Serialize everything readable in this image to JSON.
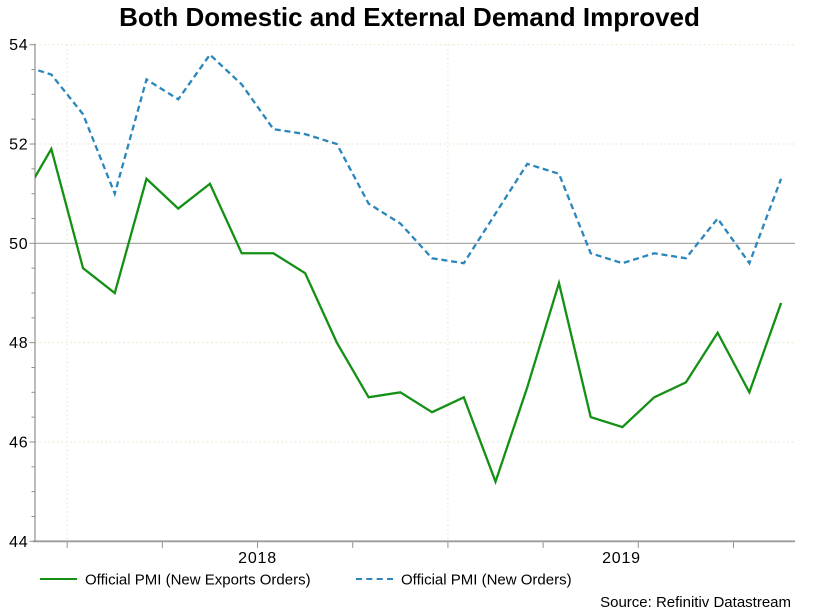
{
  "header": {
    "title": "Both Domestic and External Demand Improved"
  },
  "footer": {
    "source": "Source: Refinitiv Datastream"
  },
  "chart_data": {
    "type": "line",
    "title": "Both Domestic and External Demand Improved",
    "months": [
      "2017-11",
      "2017-12",
      "2018-01",
      "2018-02",
      "2018-03",
      "2018-04",
      "2018-05",
      "2018-06",
      "2018-07",
      "2018-08",
      "2018-09",
      "2018-10",
      "2018-11",
      "2018-12",
      "2019-01",
      "2019-02",
      "2019-03",
      "2019-04",
      "2019-05",
      "2019-06",
      "2019-07",
      "2019-08",
      "2019-09",
      "2019-10",
      "2019-11"
    ],
    "series": [
      {
        "name": "Official PMI (New Exports Orders)",
        "color": "#149014",
        "style": "solid",
        "values": [
          50.8,
          51.9,
          49.5,
          49.0,
          51.3,
          50.7,
          51.2,
          49.8,
          49.8,
          49.4,
          48.0,
          46.9,
          47.0,
          46.6,
          46.9,
          45.2,
          47.1,
          49.2,
          46.5,
          46.3,
          46.9,
          47.2,
          48.2,
          47.0,
          48.8
        ]
      },
      {
        "name": "Official PMI (New Orders)",
        "color": "#2a86bc",
        "style": "dashed",
        "values": [
          53.6,
          53.4,
          52.6,
          51.0,
          53.3,
          52.9,
          53.8,
          53.2,
          52.3,
          52.2,
          52.0,
          50.8,
          50.4,
          49.7,
          49.6,
          50.6,
          51.6,
          51.4,
          49.8,
          49.6,
          49.8,
          49.7,
          50.5,
          49.6,
          51.3
        ]
      }
    ],
    "ylim": [
      44,
      54
    ],
    "y_major_ticks": [
      44,
      46,
      48,
      50,
      52,
      54
    ],
    "y_minor_step": 0.5,
    "reference_line": 50,
    "x_year_labels": [
      "2018",
      "2019"
    ],
    "x_tick_interval": "quarterly",
    "grid": "pale dotted horizontal lines at 46/48/52/54 and vertical lines at year starts; solid gray line at 50",
    "first_point_clipped_at_left_edge": true,
    "legend_position": "bottom",
    "colors": {
      "grid_dotted": "#e9e3c4",
      "reference_line": "#a9a9a9",
      "axis": "#8f8f8f",
      "axis_bottom": "#9b9b9b"
    }
  }
}
